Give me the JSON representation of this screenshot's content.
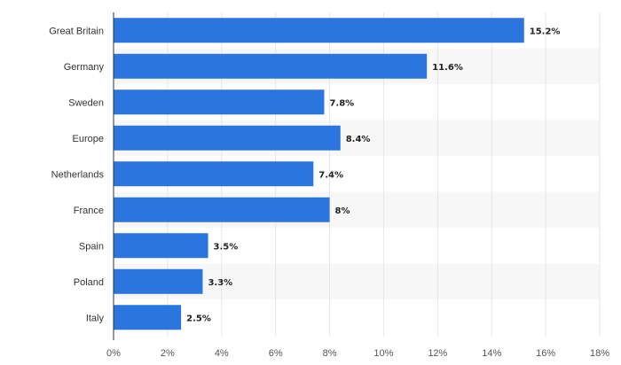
{
  "chart_data": {
    "type": "bar",
    "orientation": "horizontal",
    "title": "",
    "xlabel": "",
    "ylabel": "",
    "categories": [
      "Great Britain",
      "Germany",
      "Sweden",
      "Europe",
      "Netherlands",
      "France",
      "Spain",
      "Poland",
      "Italy"
    ],
    "values": [
      15.2,
      11.6,
      7.8,
      8.4,
      7.4,
      8,
      3.5,
      3.3,
      2.5
    ],
    "value_labels": [
      "15.2%",
      "11.6%",
      "7.8%",
      "8.4%",
      "7.4%",
      "8%",
      "3.5%",
      "3.3%",
      "2.5%"
    ],
    "x_ticks": [
      "0%",
      "2%",
      "4%",
      "6%",
      "8%",
      "10%",
      "12%",
      "14%",
      "16%",
      "18%"
    ],
    "xlim": [
      0,
      18
    ],
    "grid": true,
    "legend": "none",
    "colors": {
      "bar": "#2a75de",
      "band": "#f7f7f7",
      "grid": "#e6e6e6",
      "axis": "#333333"
    }
  }
}
